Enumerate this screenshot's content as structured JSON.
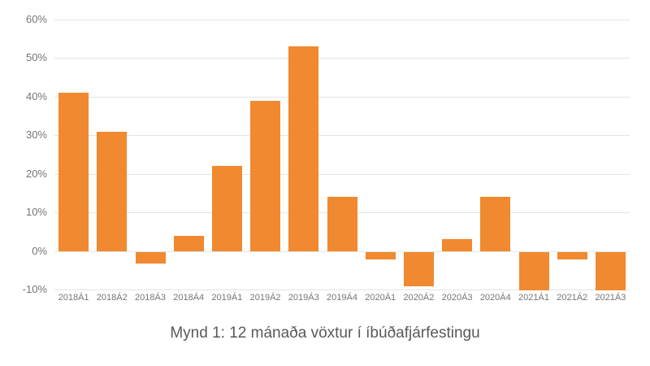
{
  "chart_data": {
    "type": "bar",
    "title": "Mynd 1: 12 mánaða vöxtur í íbúðafjárfestingu",
    "xlabel": "",
    "ylabel": "",
    "categories": [
      "2018Á1",
      "2018Á2",
      "2018Á3",
      "2018Á4",
      "2019Á1",
      "2019Á2",
      "2019Á3",
      "2019Á4",
      "2020Á1",
      "2020Á2",
      "2020Á3",
      "2020Á4",
      "2021Á1",
      "2021Á2",
      "2021Á3"
    ],
    "values": [
      41,
      31,
      -3,
      4,
      22,
      39,
      53,
      14,
      -2,
      -9,
      3,
      14,
      -10,
      -2,
      -10
    ],
    "value_unit": "%",
    "ylim": [
      -10,
      60
    ],
    "y_tick_labels": [
      "60%",
      "50%",
      "40%",
      "30%",
      "20%",
      "10%",
      "0%",
      "-10%"
    ],
    "y_tick_values": [
      60,
      50,
      40,
      30,
      20,
      10,
      0,
      -10
    ],
    "grid": true,
    "legend_position": "none",
    "colors": {
      "bar": "#f0892f",
      "gridline": "#e4e4e4",
      "tick_text": "#757575",
      "title_text": "#595959",
      "background": "#ffffff"
    }
  }
}
